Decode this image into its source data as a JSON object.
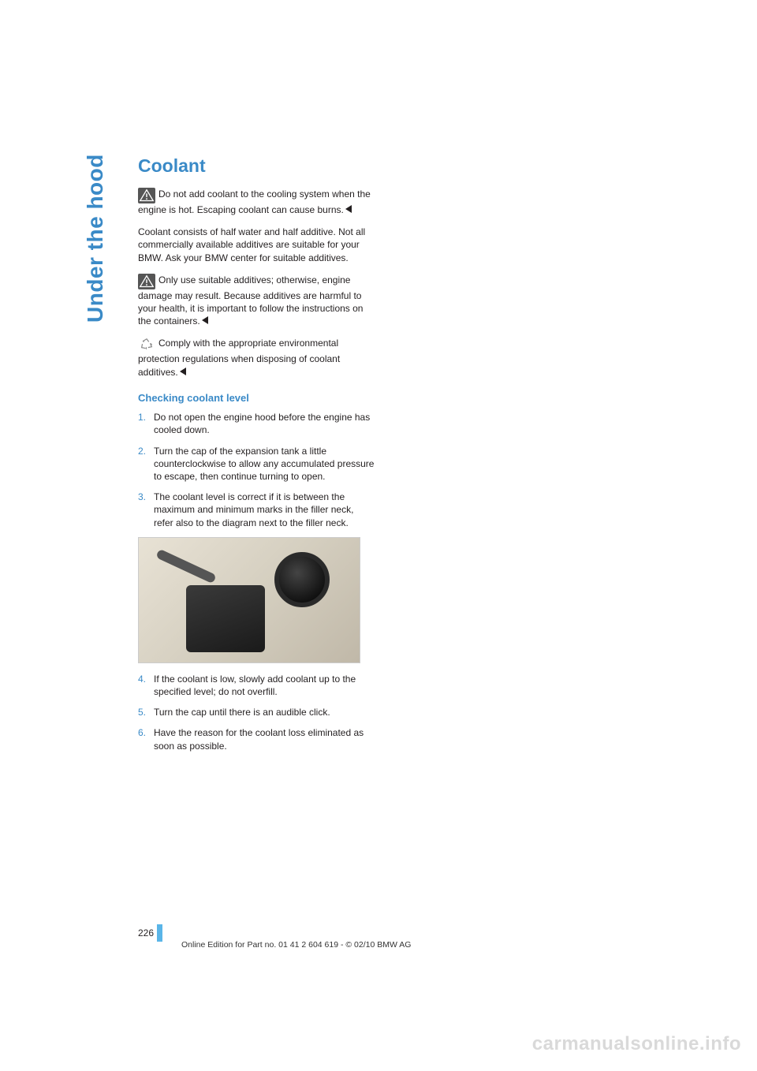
{
  "side_tab": "Under the hood",
  "section_title": "Coolant",
  "warn1": "Do not add coolant to the cooling system when the engine is hot. Escaping coolant can cause burns.",
  "para1": "Coolant consists of half water and half additive. Not all commercially available additives are suitable for your BMW. Ask your BMW center for suitable additives.",
  "warn2": "Only use suitable additives; otherwise, engine damage may result. Because additives are harmful to your health, it is important to follow the instructions on the containers.",
  "recycle": "Comply with the appropriate environmental protection regulations when disposing of coolant additives.",
  "sub_title": "Checking coolant level",
  "steps": {
    "s1": "Do not open the engine hood before the engine has cooled down.",
    "s2": "Turn the cap of the expansion tank a little counterclockwise to allow any accumulated pressure to escape, then continue turning to open.",
    "s3": "The coolant level is correct if it is between the maximum and minimum marks in the filler neck, refer also to the diagram next to the filler neck.",
    "s4": "If the coolant is low, slowly add coolant up to the specified level; do not overfill.",
    "s5": "Turn the cap until there is an audible click.",
    "s6": "Have the reason for the coolant loss eliminated as soon as possible."
  },
  "step_nums": {
    "n1": "1.",
    "n2": "2.",
    "n3": "3.",
    "n4": "4.",
    "n5": "5.",
    "n6": "6."
  },
  "page_number": "226",
  "footer": "Online Edition for Part no. 01 41 2 604 619 - © 02/10 BMW AG",
  "watermark": "carmanualsonline.info",
  "colors": {
    "accent": "#3a8ac7",
    "bar": "#5ab5e8",
    "text": "#231f20"
  }
}
